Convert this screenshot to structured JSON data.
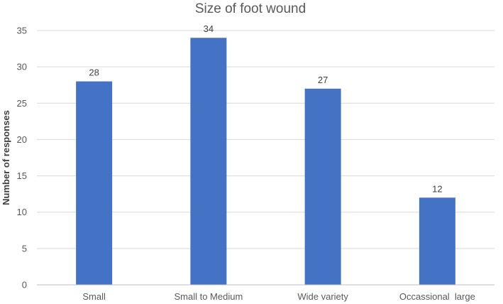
{
  "chart_data": {
    "type": "bar",
    "title": "Size of foot wound",
    "xlabel": "",
    "ylabel": "Number of responses",
    "categories": [
      "Small",
      "Small to Medium",
      "Wide variety",
      "Occassional  large"
    ],
    "values": [
      28,
      34,
      27,
      12
    ],
    "data_labels": [
      "28",
      "34",
      "27",
      "12"
    ],
    "ylim": [
      0,
      35
    ],
    "yticks": [
      0,
      5,
      10,
      15,
      20,
      25,
      30,
      35
    ],
    "grid": true,
    "legend": "none",
    "bar_color": "#4472c4"
  }
}
